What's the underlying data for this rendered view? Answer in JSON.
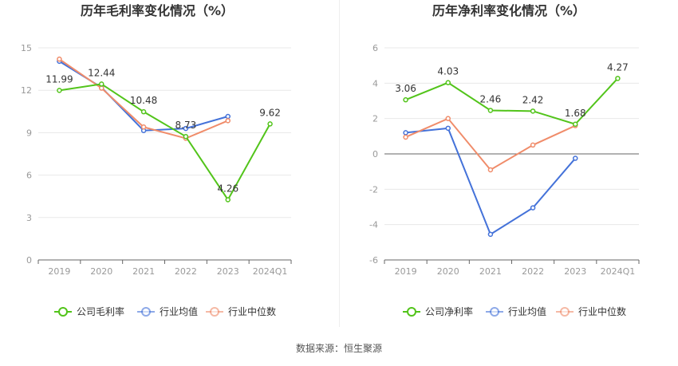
{
  "source": "数据来源：恒生聚源",
  "colors": {
    "company": "#52c41a",
    "avg": "#4472d9",
    "median": "#f08c6a",
    "axis": "#999999",
    "grid": "#e8e8e8",
    "label": "#333333"
  },
  "chart_data": [
    {
      "type": "line",
      "title": "历年毛利率变化情况（%）",
      "categories": [
        "2019",
        "2020",
        "2021",
        "2022",
        "2023",
        "2024Q1"
      ],
      "ylim": [
        0,
        15
      ],
      "yticks": [
        "0",
        "3",
        "6",
        "9",
        "12",
        "15"
      ],
      "grid": true,
      "legend_position": "bottom",
      "series": [
        {
          "name": "公司毛利率",
          "key": "company",
          "values": [
            11.99,
            12.44,
            10.48,
            8.73,
            4.26,
            9.62
          ],
          "labels": [
            "11.99",
            "12.44",
            "10.48",
            "8.73",
            "4.26",
            "9.62"
          ]
        },
        {
          "name": "行业均值",
          "key": "avg",
          "values": [
            14.05,
            12.2,
            9.15,
            9.3,
            10.15,
            null
          ]
        },
        {
          "name": "行业中位数",
          "key": "median",
          "values": [
            14.2,
            12.15,
            9.4,
            8.6,
            9.85,
            null
          ]
        }
      ]
    },
    {
      "type": "line",
      "title": "历年净利率变化情况（%）",
      "categories": [
        "2019",
        "2020",
        "2021",
        "2022",
        "2023",
        "2024Q1"
      ],
      "ylim": [
        -6,
        6
      ],
      "yticks": [
        "-6",
        "-4",
        "-2",
        "0",
        "2",
        "4",
        "6"
      ],
      "grid": true,
      "legend_position": "bottom",
      "series": [
        {
          "name": "公司净利率",
          "key": "company",
          "values": [
            3.06,
            4.03,
            2.46,
            2.42,
            1.68,
            4.27
          ],
          "labels": [
            "3.06",
            "4.03",
            "2.46",
            "2.42",
            "1.68",
            "4.27"
          ]
        },
        {
          "name": "行业均值",
          "key": "avg",
          "values": [
            1.2,
            1.45,
            -4.55,
            -3.05,
            -0.25,
            null
          ]
        },
        {
          "name": "行业中位数",
          "key": "median",
          "values": [
            0.95,
            2.0,
            -0.9,
            0.5,
            1.6,
            null
          ]
        }
      ]
    }
  ]
}
